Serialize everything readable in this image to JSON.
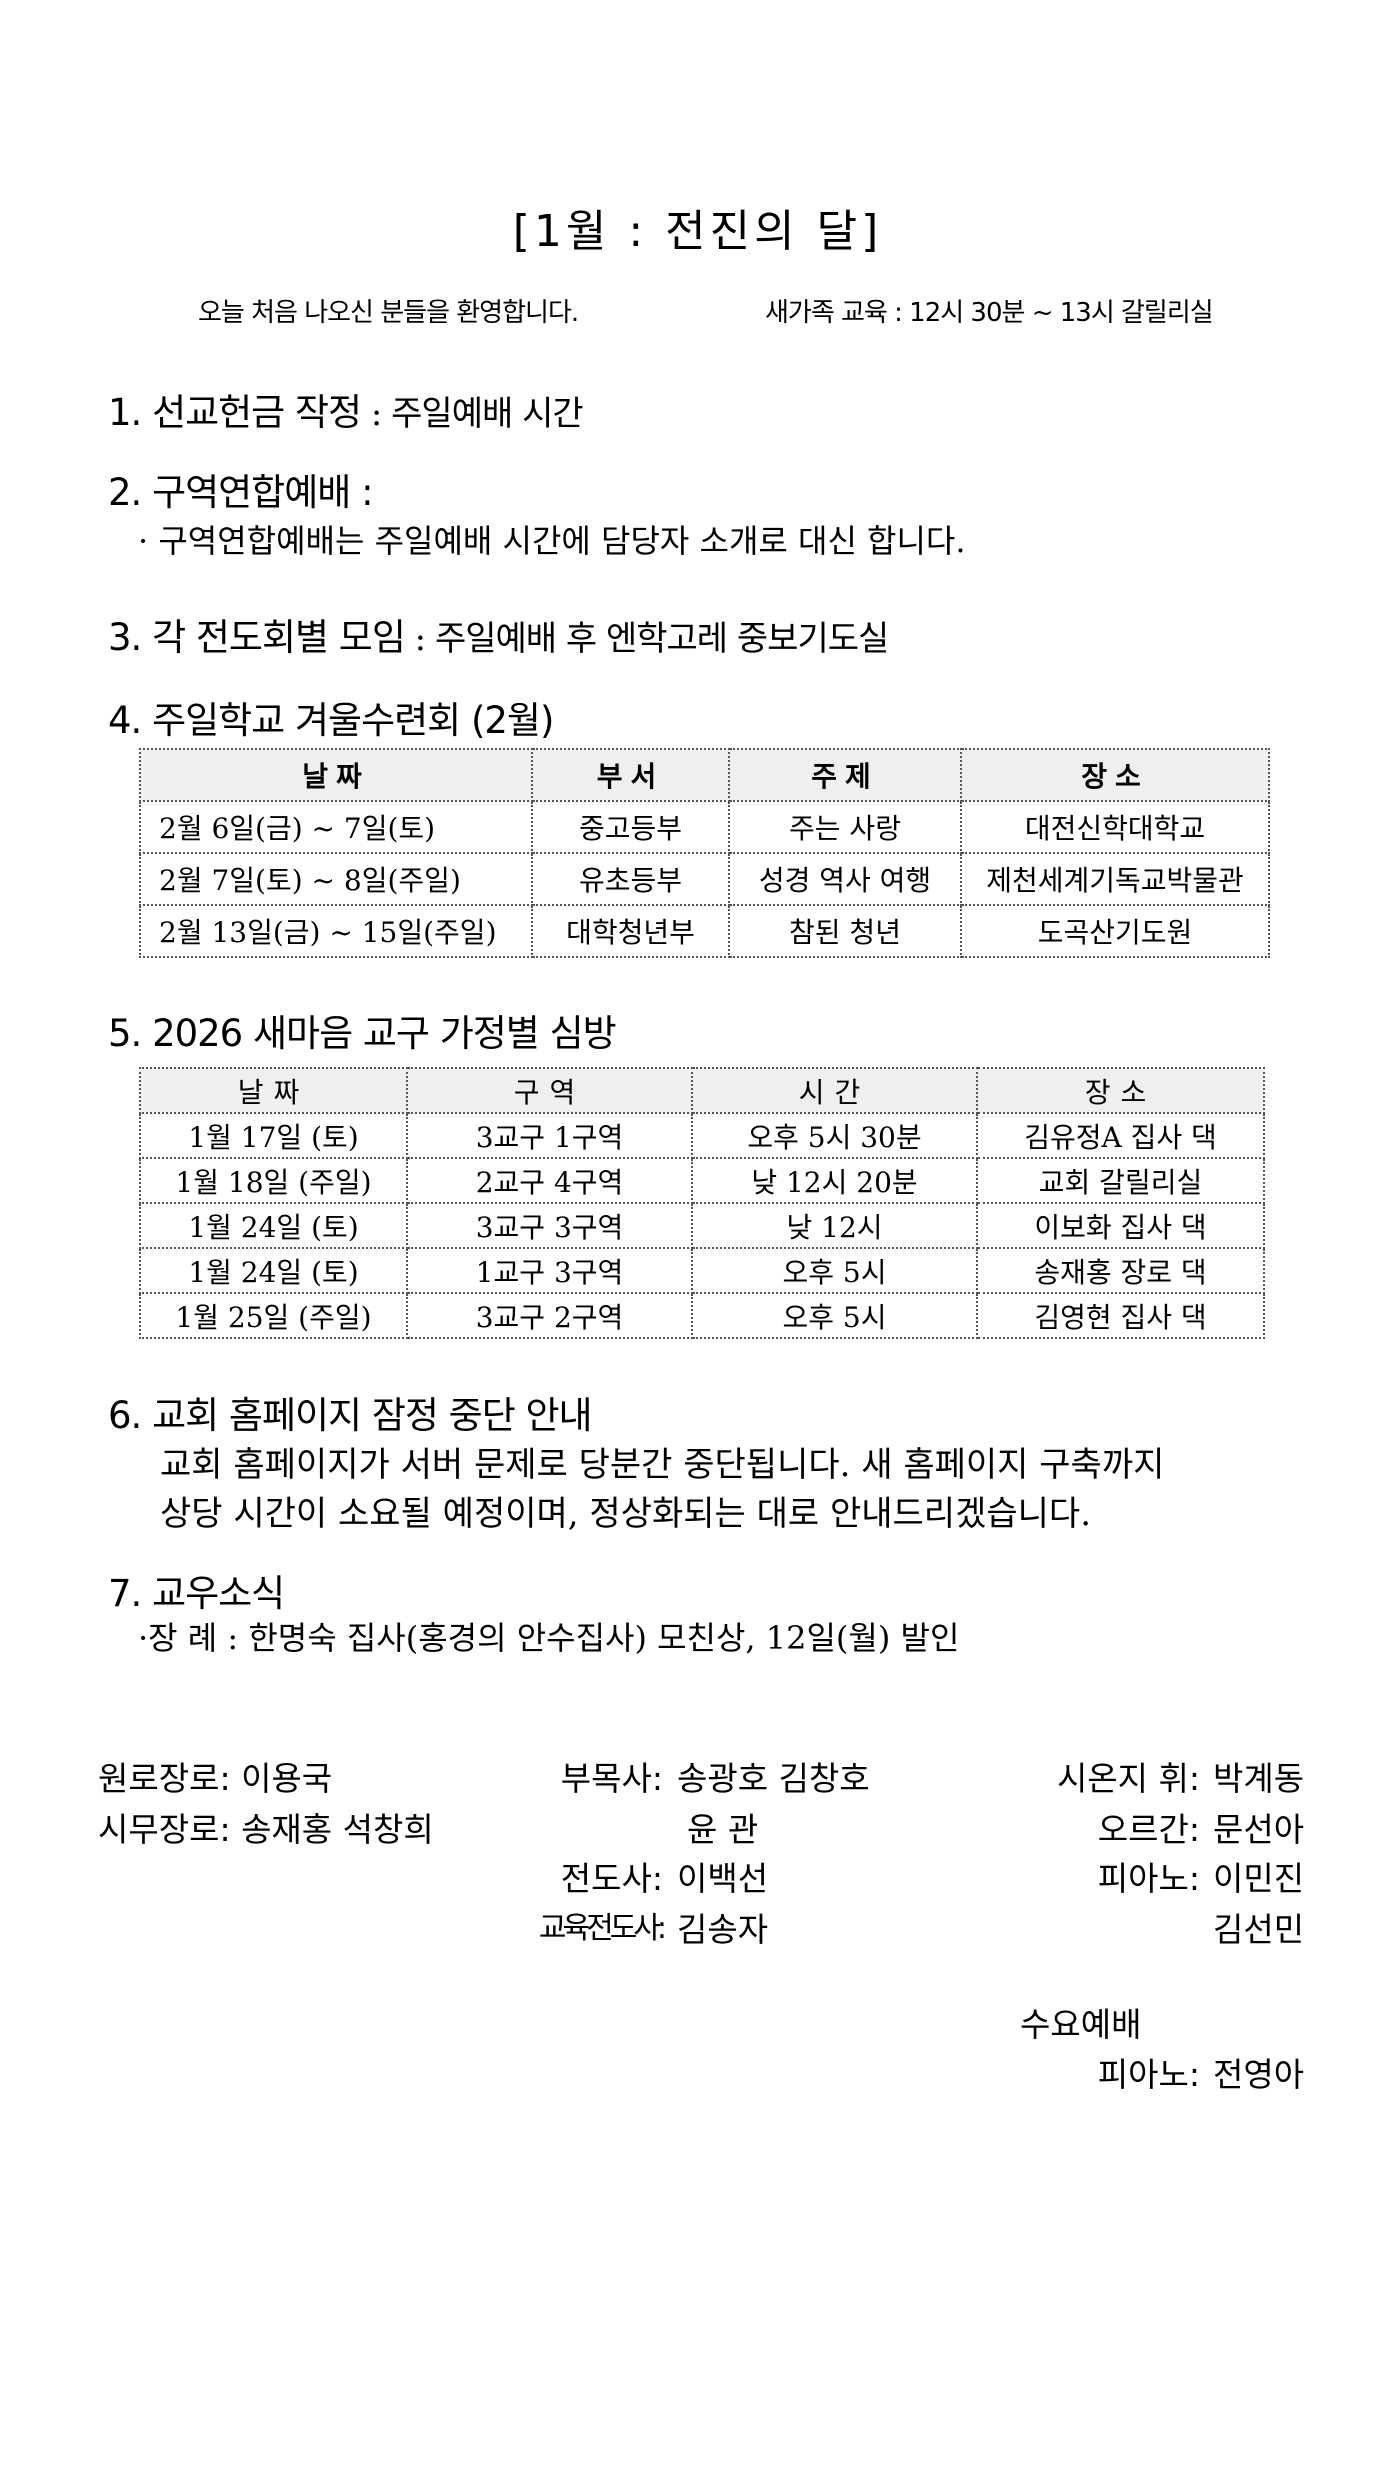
{
  "title": "[1월 : 전진의 달]",
  "welcome": "오늘 처음 나오신 분들을 환영합니다.",
  "newcomer": "새가족 교육 : 12시 30분 ~ 13시  갈릴리실",
  "items": [
    {
      "label": "1. 선교헌금 작정",
      "value": " : 주일예배 시간"
    },
    {
      "label": "2. 구역연합예배 :",
      "note": "· 구역연합예배는 주일예배 시간에 담당자 소개로 대신 합니다."
    },
    {
      "label": "3. 각 전도회별 모임",
      "value": " : 주일예배 후 엔학고레 중보기도실"
    },
    {
      "label": "4. 주일학교 겨울수련회 (2월)"
    },
    {
      "label": "5. 2026 새마음 교구 가정별 심방"
    },
    {
      "label": "6. 교회 홈페이지 잠정 중단 안내",
      "lines": [
        "교회 홈페이지가 서버 문제로 당분간 중단됩니다. 새 홈페이지 구축까지",
        "상당 시간이 소요될 예정이며, 정상화되는 대로 안내드리겠습니다."
      ]
    },
    {
      "label": "7. 교우소식",
      "note": "·장 례 : 한명숙 집사(홍경의 안수집사) 모친상, 12일(월) 발인"
    }
  ],
  "retreat_table": {
    "headers": [
      "날짜",
      "부서",
      "주제",
      "장소"
    ],
    "rows": [
      [
        "2월 6일(금) ~ 7일(토)",
        "중고등부",
        "주는 사랑",
        "대전신학대학교"
      ],
      [
        "2월 7일(토) ~ 8일(주일)",
        "유초등부",
        "성경 역사 여행",
        "제천세계기독교박물관"
      ],
      [
        "2월 13일(금) ~ 15일(주일)",
        "대학청년부",
        "참된 청년",
        "도곡산기도원"
      ]
    ]
  },
  "visit_table": {
    "headers": [
      "날짜",
      "구역",
      "시간",
      "장소"
    ],
    "rows": [
      [
        "1월 17일 (토)",
        "3교구 1구역",
        "오후 5시 30분",
        "김유정A 집사 댁"
      ],
      [
        "1월 18일 (주일)",
        "2교구 4구역",
        "낮 12시 20분",
        "교회 갈릴리실"
      ],
      [
        "1월 24일 (토)",
        "3교구 3구역",
        "낮 12시",
        "이보화 집사 댁"
      ],
      [
        "1월 24일 (토)",
        "1교구 3구역",
        "오후 5시",
        "송재홍 장로 댁"
      ],
      [
        "1월 25일 (주일)",
        "3교구 2구역",
        "오후 5시",
        "김영현 집사 댁"
      ]
    ]
  },
  "staff": {
    "elder_emeritus": {
      "label": "원로장로:",
      "value": "이용국"
    },
    "elders": {
      "label": "시무장로:",
      "value": "송재홍 석창희"
    },
    "associate": {
      "label": "부목사:",
      "value": "송광호 김창호",
      "value2": "윤  관"
    },
    "evangelist": {
      "label": "전도사:",
      "value": "이백선"
    },
    "edu_evangelist": {
      "label": "교육전도사:",
      "value": "김송자"
    },
    "conductor": {
      "label": "시온지  휘:",
      "value": "박계동"
    },
    "organ": {
      "label": "오르간:",
      "value": "문선아"
    },
    "piano": {
      "label": "피아노:",
      "value": "이민진",
      "value2": "김선민"
    },
    "wednesday": {
      "label": "수요예배",
      "piano_label": "피아노:",
      "piano_value": "전영아"
    }
  }
}
